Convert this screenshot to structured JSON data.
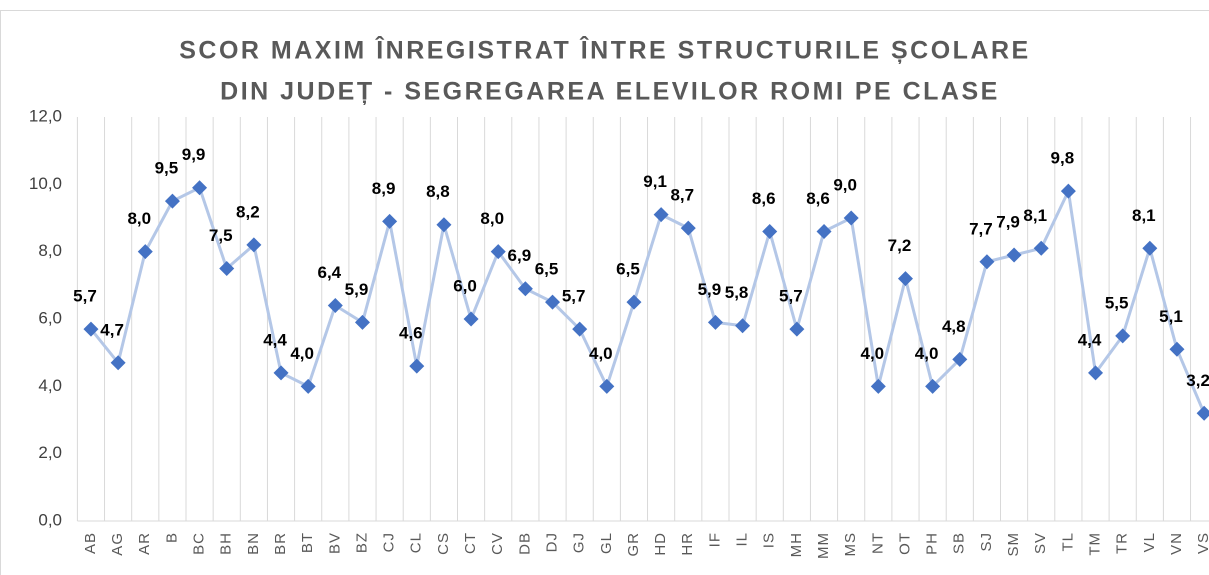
{
  "chart_data": {
    "type": "line",
    "title": [
      "SCOR MAXIM ÎNREGISTRAT ÎNTRE STRUCTURILE ȘCOLARE",
      "DIN JUDEȚ - SEGREGAREA ELEVILOR ROMI PE CLASE"
    ],
    "categories": [
      "AB",
      "AG",
      "AR",
      "B",
      "BC",
      "BH",
      "BN",
      "BR",
      "BT",
      "BV",
      "BZ",
      "CJ",
      "CL",
      "CS",
      "CT",
      "CV",
      "DB",
      "DJ",
      "GJ",
      "GL",
      "GR",
      "HD",
      "HR",
      "IF",
      "IL",
      "IS",
      "MH",
      "MM",
      "MS",
      "NT",
      "OT",
      "PH",
      "SB",
      "SJ",
      "SM",
      "SV",
      "TL",
      "TM",
      "TR",
      "VL",
      "VN",
      "VS"
    ],
    "values": [
      5.7,
      4.7,
      8.0,
      9.5,
      9.9,
      7.5,
      8.2,
      4.4,
      4.0,
      6.4,
      5.9,
      8.9,
      4.6,
      8.8,
      6.0,
      8.0,
      6.9,
      6.5,
      5.7,
      4.0,
      6.5,
      9.1,
      8.7,
      5.9,
      5.8,
      8.6,
      5.7,
      8.6,
      9.0,
      4.0,
      7.2,
      4.0,
      4.8,
      7.7,
      7.9,
      8.1,
      9.8,
      4.4,
      5.5,
      8.1,
      5.1,
      3.2
    ],
    "value_labels": [
      "5,7",
      "4,7",
      "8,0",
      "9,5",
      "9,9",
      "7,5",
      "8,2",
      "4,4",
      "4,0",
      "6,4",
      "5,9",
      "8,9",
      "4,6",
      "8,8",
      "6,0",
      "8,0",
      "6,9",
      "6,5",
      "5,7",
      "4,0",
      "6,5",
      "9,1",
      "8,7",
      "5,9",
      "5,8",
      "8,6",
      "5,7",
      "8,6",
      "9,0",
      "4,0",
      "7,2",
      "4,0",
      "4,8",
      "7,7",
      "7,9",
      "8,1",
      "9,8",
      "4,4",
      "5,5",
      "8,1",
      "5,1",
      "3,2"
    ],
    "line_color": "#b4c7e7",
    "marker_color": "#4472c4",
    "ylim": [
      0,
      12
    ],
    "yticks": [
      {
        "value": 0,
        "label": "0,0"
      },
      {
        "value": 2,
        "label": "2,0"
      },
      {
        "value": 4,
        "label": "4,0"
      },
      {
        "value": 6,
        "label": "6,0"
      },
      {
        "value": 8,
        "label": "8,0"
      },
      {
        "value": 10,
        "label": "10,0"
      },
      {
        "value": 12,
        "label": "12,0"
      }
    ]
  }
}
